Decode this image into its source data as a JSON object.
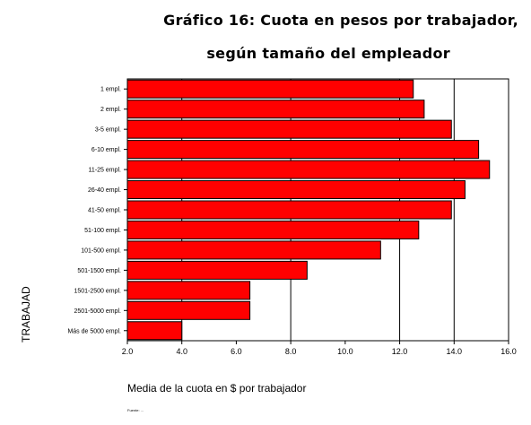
{
  "title_line1": "Gráfico 16: Cuota en pesos por trabajador,",
  "title_line2": "según tamaño del empleador",
  "source_note": "Fuente: ...",
  "chart_data": {
    "type": "bar",
    "orientation": "horizontal",
    "title": "Gráfico 16: Cuota en pesos por trabajador, según tamaño del empleador",
    "xlabel": "Media de la cuota en $ por trabajador",
    "ylabel": "TRABAJAD",
    "xlim": [
      2.0,
      16.0
    ],
    "xticks": [
      "2.0",
      "4.0",
      "6.0",
      "8.0",
      "10.0",
      "12.0",
      "14.0",
      "16.0"
    ],
    "grid": "vertical at 4, 8, 12, 14",
    "bar_color": "#ff0000",
    "categories": [
      "1 empl.",
      "2 empl.",
      "3-5 empl.",
      "6-10 empl.",
      "11-25 empl.",
      "26-40 empl.",
      "41-50 empl.",
      "51-100 empl.",
      "101-500 empl.",
      "501-1500 empl.",
      "1501-2500 empl.",
      "2501-5000 empl.",
      "Más de 5000 empl."
    ],
    "values": [
      12.5,
      12.9,
      13.9,
      14.9,
      15.3,
      14.4,
      13.9,
      12.7,
      11.3,
      8.6,
      6.5,
      6.5,
      4.0
    ]
  }
}
